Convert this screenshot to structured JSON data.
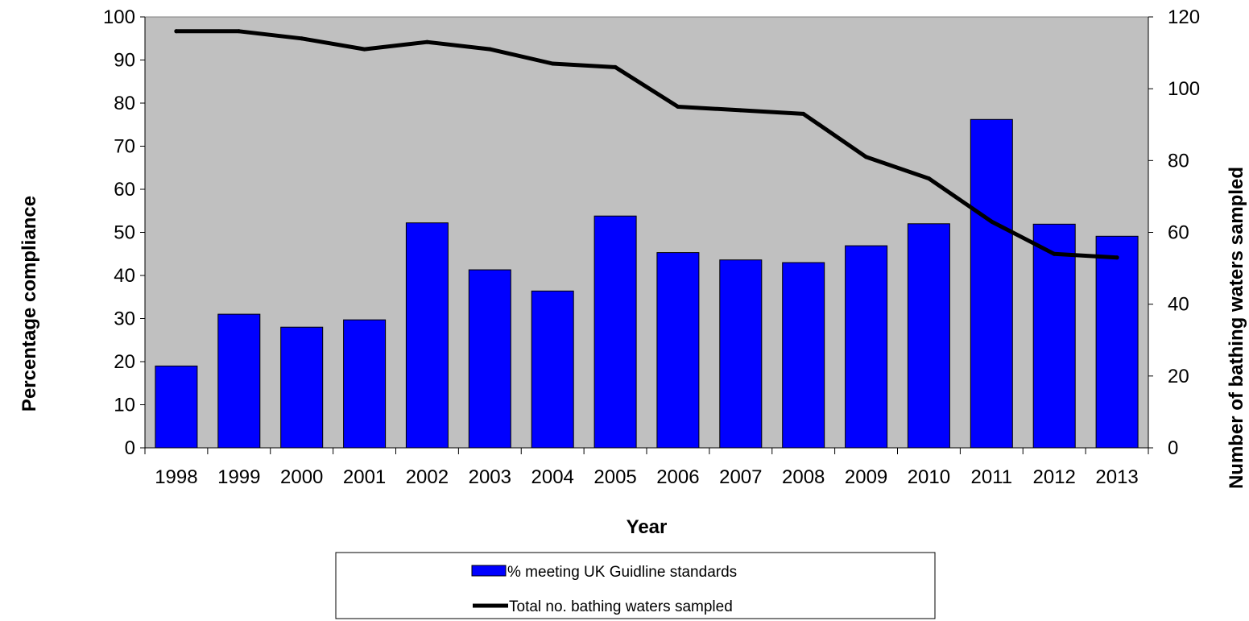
{
  "chart_data": {
    "type": "bar",
    "categories": [
      "1998",
      "1999",
      "2000",
      "2001",
      "2002",
      "2003",
      "2004",
      "2005",
      "2006",
      "2007",
      "2008",
      "2009",
      "2010",
      "2011",
      "2012",
      "2013"
    ],
    "series": [
      {
        "name": "% meeting UK Guidline standards",
        "type": "bar",
        "axis": "left",
        "color": "#0000ff",
        "values": [
          19,
          31,
          28,
          29.7,
          52.2,
          41.3,
          36.4,
          53.8,
          45.3,
          43.6,
          43,
          46.9,
          52,
          76.2,
          51.9,
          49.1
        ]
      },
      {
        "name": "Total no. bathing waters sampled",
        "type": "line",
        "axis": "right",
        "color": "#000000",
        "values": [
          116,
          116,
          114,
          111,
          113,
          111,
          107,
          106,
          95,
          94,
          93,
          81,
          75,
          63,
          54,
          53
        ]
      }
    ],
    "xlabel": "Year",
    "ylabel": "Percentage compliance",
    "y2label": "Number of bathing waters sampled",
    "ylim": [
      0,
      100
    ],
    "y2lim": [
      0,
      120
    ],
    "yticks": [
      "0",
      "10",
      "20",
      "30",
      "40",
      "50",
      "60",
      "70",
      "80",
      "90",
      "100"
    ],
    "y2ticks": [
      "0",
      "20",
      "40",
      "60",
      "80",
      "100",
      "120"
    ],
    "plot_background": "#c0c0c0",
    "grid": false,
    "legend_position": "bottom"
  }
}
